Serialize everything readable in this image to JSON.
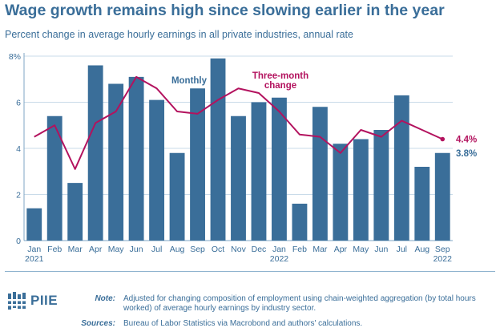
{
  "title": "Wage growth remains high since slowing earlier in the year",
  "subtitle": "Percent change in average hourly earnings in all private industries, annual rate",
  "chart_data": {
    "type": "bar",
    "categories": [
      "Jan",
      "Feb",
      "Mar",
      "Apr",
      "May",
      "Jun",
      "Jul",
      "Aug",
      "Sep",
      "Oct",
      "Nov",
      "Dec",
      "Jan",
      "Feb",
      "Mar",
      "Apr",
      "May",
      "Jun",
      "Jul",
      "Aug",
      "Sep"
    ],
    "year_labels": [
      "2021",
      "",
      "",
      "",
      "",
      "",
      "",
      "",
      "",
      "",
      "",
      "",
      "2022",
      "",
      "",
      "",
      "",
      "",
      "",
      "",
      "2022"
    ],
    "yticks": [
      "0",
      "2",
      "4",
      "6",
      "8%"
    ],
    "ylim": [
      0,
      8
    ],
    "grid": true,
    "series": [
      {
        "name": "Monthly",
        "type": "bar",
        "values": [
          1.4,
          5.4,
          2.5,
          7.6,
          6.8,
          7.1,
          6.1,
          3.8,
          6.6,
          7.9,
          5.4,
          6.0,
          6.2,
          1.6,
          5.8,
          4.2,
          4.4,
          4.8,
          6.3,
          3.2,
          3.8
        ],
        "end_label": "3.8%",
        "color": "#3a6e99"
      },
      {
        "name": "Three-month change",
        "name_lines": [
          "Three-month",
          "change"
        ],
        "type": "line",
        "values": [
          4.5,
          5.0,
          3.1,
          5.1,
          5.6,
          7.1,
          6.6,
          5.6,
          5.5,
          6.1,
          6.6,
          6.4,
          5.6,
          4.6,
          4.5,
          3.8,
          4.8,
          4.5,
          5.2,
          4.8,
          4.4
        ],
        "end_label": "4.4%",
        "color": "#b3125e"
      }
    ]
  },
  "footer": {
    "logo_text": "PIIE",
    "note_label": "Note:",
    "note_text": "Adjusted for changing composition of employment using chain-weighted aggregation (by total hours worked) of average hourly earnings by industry sector.",
    "sources_label": "Sources:",
    "sources_text": "Bureau of Labor Statistics via Macrobond and authors' calculations."
  }
}
